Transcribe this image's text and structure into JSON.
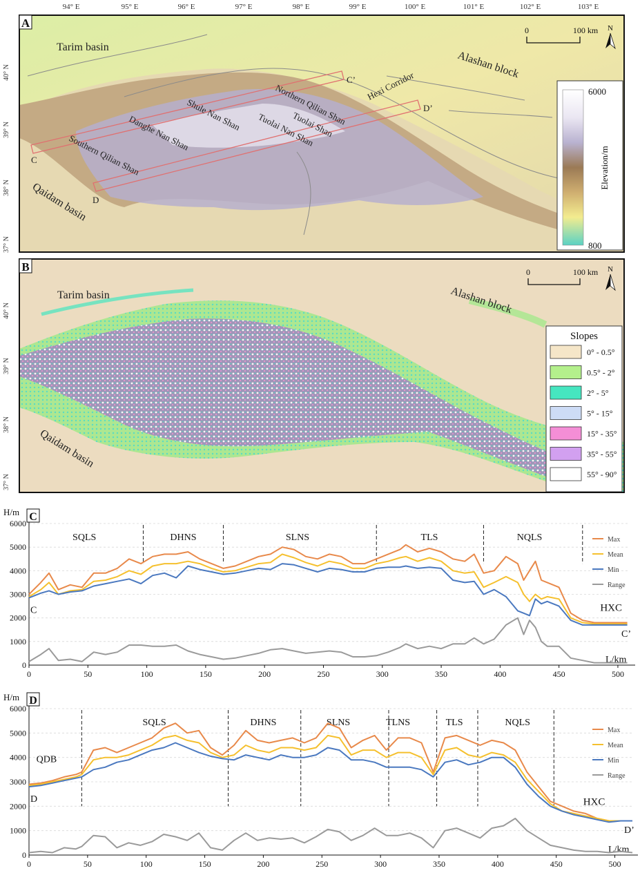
{
  "panel_a": {
    "letter": "A",
    "top_ticks": [
      "94° E",
      "95° E",
      "96° E",
      "97° E",
      "98° E",
      "99° E",
      "100° E",
      "101° E",
      "102° E",
      "103° E"
    ],
    "lat_ticks": [
      "40° N",
      "39° N",
      "38° N",
      "37° N"
    ],
    "labels": {
      "tarim": "Tarim basin",
      "alashan": "Alashan block",
      "qaidam": "Qaidam basin",
      "hexi": "Hexi Corridor",
      "northern_qilian": "Northern Qilian Shan",
      "tuolai_shan": "Tuolai Shan",
      "tuolai_nan_shan": "Tuolai Nan Shan",
      "shule": "Shule Nan Shan",
      "danghe": "Danghe Nan Shan",
      "southern_qilian": "Southern Qilian Shan",
      "pt_c": "C",
      "pt_cp": "C’",
      "pt_d": "D",
      "pt_dp": "D’"
    },
    "scale": {
      "zero": "0",
      "end": "100 km",
      "north": "N"
    },
    "legend": {
      "max": "6000",
      "min": "800",
      "title": "Elevation/m"
    }
  },
  "panel_b": {
    "letter": "B",
    "lat_ticks": [
      "40° N",
      "39° N",
      "38° N",
      "37° N"
    ],
    "labels": {
      "tarim": "Tarim basin",
      "alashan": "Alashan block",
      "qaidam": "Qaidam basin"
    },
    "scale": {
      "zero": "0",
      "end": "100 km",
      "north": "N"
    },
    "legend": {
      "title": "Slopes",
      "items": [
        {
          "label": "0° - 0.5°",
          "color": "#f5e6c8"
        },
        {
          "label": "0.5° - 2°",
          "color": "#b4f08c"
        },
        {
          "label": "2° - 5°",
          "color": "#46e6c0"
        },
        {
          "label": "5° - 15°",
          "color": "#cddcf6"
        },
        {
          "label": "15° - 35°",
          "color": "#f48ed6"
        },
        {
          "label": "35° - 55°",
          "color": "#d2a0f0"
        },
        {
          "label": "55° - 90°",
          "color": "#ffffff"
        }
      ]
    }
  },
  "chart_data": [
    {
      "type": "line",
      "panel": "C",
      "ylabel": "H/m",
      "xlabel": "L/km",
      "xlim": [
        0,
        510
      ],
      "ylim": [
        0,
        6000
      ],
      "x_ticks": [
        0,
        50,
        100,
        150,
        200,
        250,
        300,
        350,
        400,
        450,
        500
      ],
      "y_ticks": [
        0,
        1000,
        2000,
        3000,
        4000,
        5000,
        6000
      ],
      "zones": [
        {
          "label": "SQLS",
          "center": 47
        },
        {
          "label": "DHNS",
          "center": 131
        },
        {
          "label": "SLNS",
          "center": 228
        },
        {
          "label": "TLS",
          "center": 340
        },
        {
          "label": "NQLS",
          "center": 425
        }
      ],
      "boundaries": [
        97,
        165,
        295,
        386,
        470
      ],
      "start_label": "C",
      "end_label": "C’",
      "end_zone_label": "HXC",
      "x": [
        0,
        10,
        17,
        25,
        35,
        45,
        55,
        65,
        75,
        85,
        95,
        105,
        115,
        125,
        135,
        145,
        155,
        165,
        175,
        185,
        195,
        205,
        215,
        225,
        235,
        245,
        255,
        265,
        275,
        285,
        295,
        305,
        315,
        320,
        330,
        340,
        350,
        360,
        370,
        378,
        386,
        395,
        405,
        415,
        420,
        425,
        430,
        435,
        440,
        450,
        460,
        470,
        480,
        490,
        500,
        508
      ],
      "series": [
        {
          "name": "Max",
          "color": "#e8894a",
          "values": [
            3000,
            3500,
            3900,
            3200,
            3400,
            3300,
            3900,
            3900,
            4100,
            4500,
            4300,
            4600,
            4700,
            4700,
            4800,
            4500,
            4300,
            4100,
            4200,
            4400,
            4600,
            4700,
            5000,
            4900,
            4600,
            4500,
            4700,
            4600,
            4300,
            4300,
            4500,
            4700,
            4900,
            5100,
            4800,
            4950,
            4800,
            4500,
            4400,
            4700,
            3900,
            4000,
            4600,
            4300,
            3600,
            4000,
            4400,
            3600,
            3500,
            3300,
            2200,
            1900,
            1800,
            1800,
            1800,
            1800
          ]
        },
        {
          "name": "Mean",
          "color": "#f5c02e",
          "values": [
            2900,
            3200,
            3500,
            3000,
            3150,
            3200,
            3550,
            3600,
            3750,
            4000,
            3850,
            4200,
            4300,
            4300,
            4400,
            4300,
            4100,
            3950,
            4000,
            4150,
            4300,
            4350,
            4700,
            4550,
            4350,
            4200,
            4400,
            4300,
            4100,
            4100,
            4300,
            4400,
            4550,
            4600,
            4400,
            4550,
            4400,
            4000,
            3900,
            3950,
            3300,
            3500,
            3750,
            3500,
            3000,
            2700,
            3000,
            2800,
            2900,
            2800,
            2000,
            1800,
            1750,
            1750,
            1750,
            1750
          ]
        },
        {
          "name": "Min",
          "color": "#4a78bf",
          "values": [
            2850,
            3050,
            3150,
            3000,
            3100,
            3150,
            3350,
            3450,
            3550,
            3650,
            3450,
            3800,
            3900,
            3700,
            4200,
            4050,
            3950,
            3850,
            3900,
            4000,
            4100,
            4050,
            4300,
            4250,
            4100,
            3950,
            4100,
            4050,
            3950,
            3950,
            4100,
            4150,
            4150,
            4200,
            4100,
            4150,
            4100,
            3600,
            3500,
            3550,
            3000,
            3200,
            2900,
            2300,
            2200,
            2100,
            2800,
            2600,
            2700,
            2500,
            1900,
            1700,
            1700,
            1700,
            1700,
            1700
          ]
        },
        {
          "name": "Range",
          "color": "#9a9a9a",
          "values": [
            150,
            450,
            700,
            200,
            250,
            150,
            550,
            450,
            550,
            850,
            850,
            800,
            800,
            850,
            600,
            450,
            350,
            250,
            300,
            400,
            500,
            650,
            700,
            600,
            500,
            550,
            600,
            550,
            350,
            350,
            400,
            550,
            750,
            900,
            700,
            800,
            700,
            900,
            900,
            1150,
            900,
            1100,
            1700,
            2000,
            1300,
            1900,
            1600,
            1000,
            800,
            800,
            300,
            200,
            100,
            100,
            100,
            100
          ]
        }
      ]
    },
    {
      "type": "line",
      "panel": "D",
      "ylabel": "H/m",
      "xlabel": "L/km",
      "xlim": [
        0,
        515
      ],
      "ylim": [
        0,
        6000
      ],
      "x_ticks": [
        0,
        50,
        100,
        150,
        200,
        250,
        300,
        350,
        400,
        450,
        500
      ],
      "y_ticks": [
        0,
        1000,
        2000,
        3000,
        4000,
        5000,
        6000
      ],
      "zones": [
        {
          "label": "QDB",
          "center": 15
        },
        {
          "label": "SQLS",
          "center": 107
        },
        {
          "label": "DHNS",
          "center": 200
        },
        {
          "label": "SLNS",
          "center": 264
        },
        {
          "label": "TLNS",
          "center": 315
        },
        {
          "label": "TLS",
          "center": 363
        },
        {
          "label": "NQLS",
          "center": 417
        }
      ],
      "boundaries": [
        45,
        170,
        232,
        307,
        348,
        383,
        448
      ],
      "start_label": "D",
      "end_label": "D’",
      "end_zone_label": "HXC",
      "x": [
        0,
        10,
        20,
        30,
        40,
        45,
        55,
        65,
        75,
        85,
        95,
        105,
        115,
        125,
        135,
        145,
        155,
        165,
        175,
        185,
        195,
        205,
        215,
        225,
        235,
        245,
        255,
        265,
        275,
        285,
        295,
        305,
        315,
        325,
        335,
        345,
        355,
        365,
        375,
        385,
        395,
        405,
        415,
        425,
        435,
        445,
        455,
        465,
        475,
        485,
        495,
        505,
        515
      ],
      "series": [
        {
          "name": "Max",
          "color": "#e8894a",
          "values": [
            2900,
            2950,
            3050,
            3200,
            3300,
            3400,
            4300,
            4400,
            4200,
            4400,
            4600,
            4800,
            5200,
            5400,
            5000,
            5100,
            4400,
            4100,
            4500,
            5100,
            4700,
            4600,
            4700,
            4800,
            4600,
            4800,
            5400,
            5200,
            4400,
            4700,
            4900,
            4300,
            4800,
            4800,
            4600,
            3400,
            4800,
            4900,
            4700,
            4500,
            4700,
            4600,
            4300,
            3400,
            2800,
            2200,
            2000,
            1800,
            1700,
            1500,
            1400,
            1400,
            1400
          ]
        },
        {
          "name": "Mean",
          "color": "#f5c02e",
          "values": [
            2850,
            2900,
            3000,
            3100,
            3200,
            3300,
            3900,
            4000,
            4000,
            4100,
            4300,
            4500,
            4800,
            4900,
            4700,
            4600,
            4200,
            4000,
            4100,
            4500,
            4300,
            4200,
            4400,
            4400,
            4300,
            4400,
            4900,
            4800,
            4100,
            4300,
            4300,
            4000,
            4200,
            4200,
            4000,
            3300,
            4300,
            4400,
            4100,
            4000,
            4200,
            4100,
            3800,
            3100,
            2600,
            2100,
            1800,
            1700,
            1600,
            1500,
            1400,
            1400,
            1400
          ]
        },
        {
          "name": "Min",
          "color": "#4a78bf",
          "values": [
            2800,
            2850,
            2950,
            3050,
            3150,
            3200,
            3500,
            3600,
            3800,
            3900,
            4100,
            4300,
            4400,
            4600,
            4400,
            4200,
            4050,
            3950,
            3900,
            4100,
            4000,
            3900,
            4100,
            4000,
            4000,
            4100,
            4400,
            4300,
            3900,
            3900,
            3800,
            3600,
            3600,
            3600,
            3500,
            3200,
            3800,
            3900,
            3700,
            3800,
            4000,
            4000,
            3600,
            2900,
            2400,
            2000,
            1800,
            1650,
            1550,
            1450,
            1350,
            1400,
            1400
          ]
        },
        {
          "name": "Range",
          "color": "#9a9a9a",
          "values": [
            100,
            150,
            100,
            300,
            250,
            350,
            800,
            750,
            300,
            500,
            400,
            550,
            850,
            750,
            600,
            900,
            300,
            200,
            600,
            900,
            600,
            700,
            650,
            700,
            500,
            750,
            1050,
            950,
            600,
            800,
            1100,
            800,
            800,
            900,
            700,
            300,
            1000,
            1100,
            900,
            700,
            1100,
            1200,
            1500,
            1000,
            700,
            400,
            300,
            200,
            150,
            150,
            100,
            150,
            100
          ]
        }
      ]
    }
  ]
}
